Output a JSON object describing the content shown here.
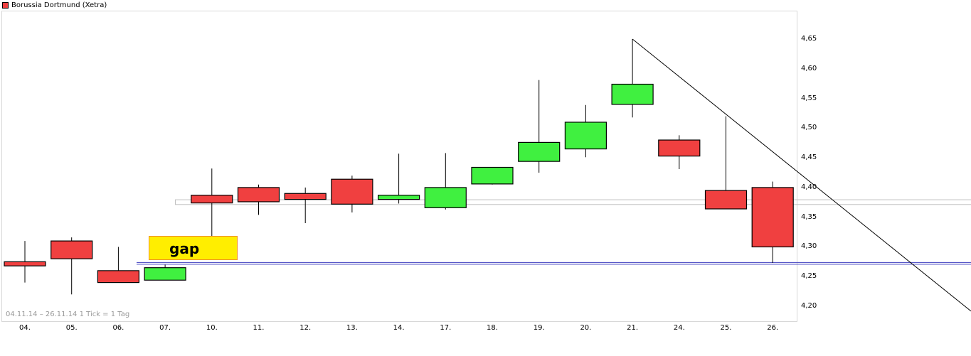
{
  "legend": {
    "label": "Borussia Dortmund (Xetra)",
    "color": "#f04040"
  },
  "footer": {
    "range_text": "04.11.14 – 26.11.14   1 Tick = 1 Tag"
  },
  "annotation": {
    "gap_label": "gap",
    "gap_fill": "#ffee00",
    "gap_border": "#f0902a"
  },
  "colors": {
    "up": "#40f040",
    "down": "#f04040",
    "support_line": "#4040c0",
    "resistance_line": "#c0c0c0",
    "trend_line": "#000000"
  },
  "y_axis": {
    "ticks": [
      "4,65",
      "4,60",
      "4,55",
      "4,50",
      "4,45",
      "4,40",
      "4,35",
      "4,30",
      "4,25",
      "4,20"
    ]
  },
  "x_axis": {
    "ticks": [
      "04.",
      "05.",
      "06.",
      "07.",
      "10.",
      "11.",
      "12.",
      "13.",
      "14.",
      "17.",
      "18.",
      "19.",
      "20.",
      "21.",
      "24.",
      "25.",
      "26."
    ]
  },
  "chart_data": {
    "type": "candlestick",
    "title": "Borussia Dortmund (Xetra)",
    "subtitle": "04.11.14 – 26.11.14, 1 Tick = 1 Tag",
    "xlabel": "",
    "ylabel": "",
    "ylim": [
      4.18,
      4.68
    ],
    "grid": false,
    "legend_position": "top-left",
    "categories": [
      "04.",
      "05.",
      "06.",
      "07.",
      "10.",
      "11.",
      "12.",
      "13.",
      "14.",
      "17.",
      "18.",
      "19.",
      "20.",
      "21.",
      "24.",
      "25.",
      "26."
    ],
    "series": [
      {
        "name": "Borussia Dortmund (Xetra)",
        "ohlc": [
          {
            "date": "04.",
            "open": 4.275,
            "high": 4.31,
            "low": 4.24,
            "close": 4.268
          },
          {
            "date": "05.",
            "open": 4.31,
            "high": 4.316,
            "low": 4.22,
            "close": 4.28
          },
          {
            "date": "06.",
            "open": 4.26,
            "high": 4.3,
            "low": 4.24,
            "close": 4.24
          },
          {
            "date": "07.",
            "open": 4.244,
            "high": 4.27,
            "low": 4.244,
            "close": 4.265
          },
          {
            "date": "10.",
            "open": 4.387,
            "high": 4.432,
            "low": 4.3,
            "close": 4.374
          },
          {
            "date": "11.",
            "open": 4.4,
            "high": 4.405,
            "low": 4.354,
            "close": 4.376
          },
          {
            "date": "12.",
            "open": 4.39,
            "high": 4.4,
            "low": 4.34,
            "close": 4.38
          },
          {
            "date": "13.",
            "open": 4.414,
            "high": 4.42,
            "low": 4.358,
            "close": 4.372
          },
          {
            "date": "14.",
            "open": 4.38,
            "high": 4.457,
            "low": 4.373,
            "close": 4.387
          },
          {
            "date": "17.",
            "open": 4.366,
            "high": 4.458,
            "low": 4.363,
            "close": 4.4
          },
          {
            "date": "18.",
            "open": 4.406,
            "high": 4.434,
            "low": 4.405,
            "close": 4.434
          },
          {
            "date": "19.",
            "open": 4.444,
            "high": 4.581,
            "low": 4.425,
            "close": 4.476
          },
          {
            "date": "20.",
            "open": 4.465,
            "high": 4.539,
            "low": 4.451,
            "close": 4.51
          },
          {
            "date": "21.",
            "open": 4.54,
            "high": 4.65,
            "low": 4.518,
            "close": 4.574
          },
          {
            "date": "24.",
            "open": 4.48,
            "high": 4.488,
            "low": 4.431,
            "close": 4.453
          },
          {
            "date": "25.",
            "open": 4.395,
            "high": 4.52,
            "low": 4.364,
            "close": 4.364
          },
          {
            "date": "26.",
            "open": 4.4,
            "high": 4.41,
            "low": 4.273,
            "close": 4.3
          }
        ]
      }
    ],
    "annotations": [
      {
        "type": "box",
        "label": "gap",
        "x_from": "07.",
        "x_to": "10.",
        "y_from": 4.272,
        "y_to": 4.315
      },
      {
        "type": "hline_pair",
        "color": "#4040c0",
        "y": 4.272,
        "from": "07."
      },
      {
        "type": "hline_pair",
        "color": "#c0c0c0",
        "y_top": 4.38,
        "y_bottom": 4.372,
        "from": "10."
      },
      {
        "type": "trendline",
        "from": {
          "date": "21.",
          "y": 4.65
        },
        "to": {
          "x": "right edge",
          "y": 4.19
        }
      }
    ]
  }
}
